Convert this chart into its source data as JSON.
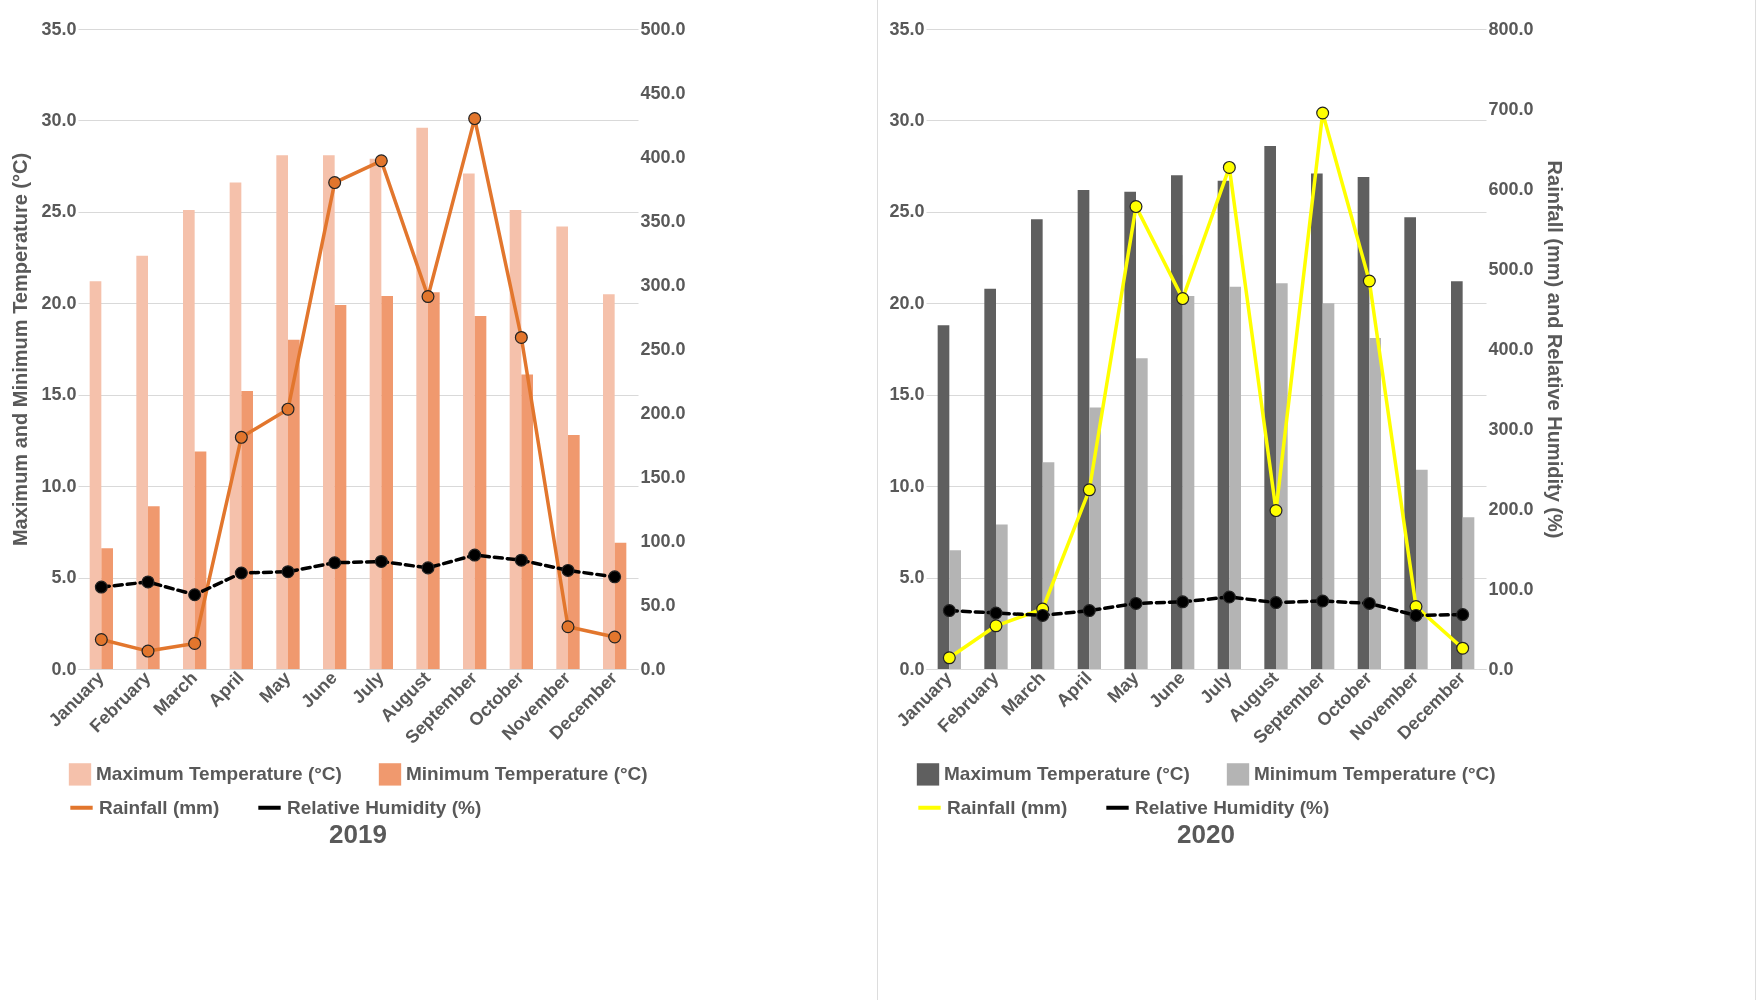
{
  "chart_data": [
    {
      "type": "bar",
      "title": "2019",
      "ylabel": "Maximum and Minimum Temperature (°C)",
      "categories": [
        "January",
        "February",
        "March",
        "April",
        "May",
        "June",
        "July",
        "August",
        "September",
        "October",
        "November",
        "December"
      ],
      "series": [
        {
          "name": "Maximum  Temperature (°C)",
          "color": "#f5c1ab",
          "values": [
            21.2,
            22.6,
            25.1,
            26.6,
            28.1,
            28.1,
            27.9,
            29.6,
            27.1,
            25.1,
            24.2,
            20.5
          ]
        },
        {
          "name": "Minimum Temperature (°C)",
          "color": "#f0996e",
          "values": [
            6.6,
            8.9,
            11.9,
            15.2,
            18.0,
            19.9,
            20.4,
            20.6,
            19.3,
            16.1,
            12.8,
            6.9
          ]
        },
        {
          "name": "Rainfall (mm)",
          "type": "line",
          "axis": "y2",
          "color": "#e2762d",
          "line_style": "solid",
          "values": [
            23,
            14,
            20,
            181,
            203,
            380,
            397,
            291,
            430,
            259,
            33,
            25
          ]
        },
        {
          "name": "Relative Humidity (%)",
          "type": "line",
          "axis": "y2",
          "color": "#000000",
          "line_style": "dashed",
          "values": [
            64,
            68,
            58,
            75,
            76,
            83,
            84,
            79,
            89,
            85,
            77,
            72
          ]
        }
      ],
      "ylim": [
        0,
        35
      ],
      "yticks": [
        {
          "value": 0,
          "label": "0.0"
        },
        {
          "value": 5,
          "label": "5.0"
        },
        {
          "value": 10,
          "label": "10.0"
        },
        {
          "value": 15,
          "label": "15.0"
        },
        {
          "value": 20,
          "label": "20.0"
        },
        {
          "value": 25,
          "label": "25.0"
        },
        {
          "value": 30,
          "label": "30.0"
        },
        {
          "value": 35,
          "label": "35.0"
        }
      ],
      "y2lim": [
        0,
        500
      ],
      "y2ticks": [
        {
          "value": 0,
          "label": "0.0"
        },
        {
          "value": 50,
          "label": "50.0"
        },
        {
          "value": 100,
          "label": "100.0"
        },
        {
          "value": 150,
          "label": "150.0"
        },
        {
          "value": 200,
          "label": "200.0"
        },
        {
          "value": 250,
          "label": "250.0"
        },
        {
          "value": 300,
          "label": "300.0"
        },
        {
          "value": 350,
          "label": "350.0"
        },
        {
          "value": 400,
          "label": "400.0"
        },
        {
          "value": 450,
          "label": "450.0"
        },
        {
          "value": 500,
          "label": "500.0"
        }
      ],
      "grid": "y",
      "legend": "bottom",
      "marker": "circle"
    },
    {
      "type": "bar",
      "title": "2020",
      "y2label": "Rainfall (mm) and Relative Humidity (%)",
      "categories": [
        "January",
        "February",
        "March",
        "April",
        "May",
        "June",
        "July",
        "August",
        "September",
        "October",
        "November",
        "December"
      ],
      "series": [
        {
          "name": "Maximum  Temperature (°C)",
          "color": "#5f5f5f",
          "values": [
            18.8,
            20.8,
            24.6,
            26.2,
            26.1,
            27.0,
            26.7,
            28.6,
            27.1,
            26.9,
            24.7,
            21.2
          ]
        },
        {
          "name": "Minimum Temperature (°C)",
          "color": "#b4b4b4",
          "values": [
            6.5,
            7.9,
            11.3,
            14.3,
            17.0,
            20.4,
            20.9,
            21.1,
            20.0,
            18.1,
            10.9,
            8.3
          ]
        },
        {
          "name": "Rainfall (mm)",
          "type": "line",
          "axis": "y2",
          "color": "#ffff00",
          "line_style": "solid",
          "values": [
            14,
            54,
            75,
            224,
            578,
            463,
            627,
            198,
            695,
            485,
            78,
            26
          ]
        },
        {
          "name": "Relative Humidity (%)",
          "type": "line",
          "axis": "y2",
          "color": "#000000",
          "line_style": "dashed",
          "values": [
            73,
            70,
            67,
            73,
            82,
            84,
            90,
            83,
            85,
            82,
            67,
            68
          ]
        }
      ],
      "ylim": [
        0,
        35
      ],
      "yticks": [
        {
          "value": 0,
          "label": "0.0"
        },
        {
          "value": 5,
          "label": "5.0"
        },
        {
          "value": 10,
          "label": "10.0"
        },
        {
          "value": 15,
          "label": "15.0"
        },
        {
          "value": 20,
          "label": "20.0"
        },
        {
          "value": 25,
          "label": "25.0"
        },
        {
          "value": 30,
          "label": "30.0"
        },
        {
          "value": 35,
          "label": "35.0"
        }
      ],
      "y2lim": [
        0,
        800
      ],
      "y2ticks": [
        {
          "value": 0,
          "label": "0.0"
        },
        {
          "value": 100,
          "label": "100.0"
        },
        {
          "value": 200,
          "label": "200.0"
        },
        {
          "value": 300,
          "label": "300.0"
        },
        {
          "value": 400,
          "label": "400.0"
        },
        {
          "value": 500,
          "label": "500.0"
        },
        {
          "value": 600,
          "label": "600.0"
        },
        {
          "value": 700,
          "label": "700.0"
        },
        {
          "value": 800,
          "label": "800.0"
        }
      ],
      "grid": "y",
      "legend": "bottom",
      "marker": "circle"
    }
  ]
}
